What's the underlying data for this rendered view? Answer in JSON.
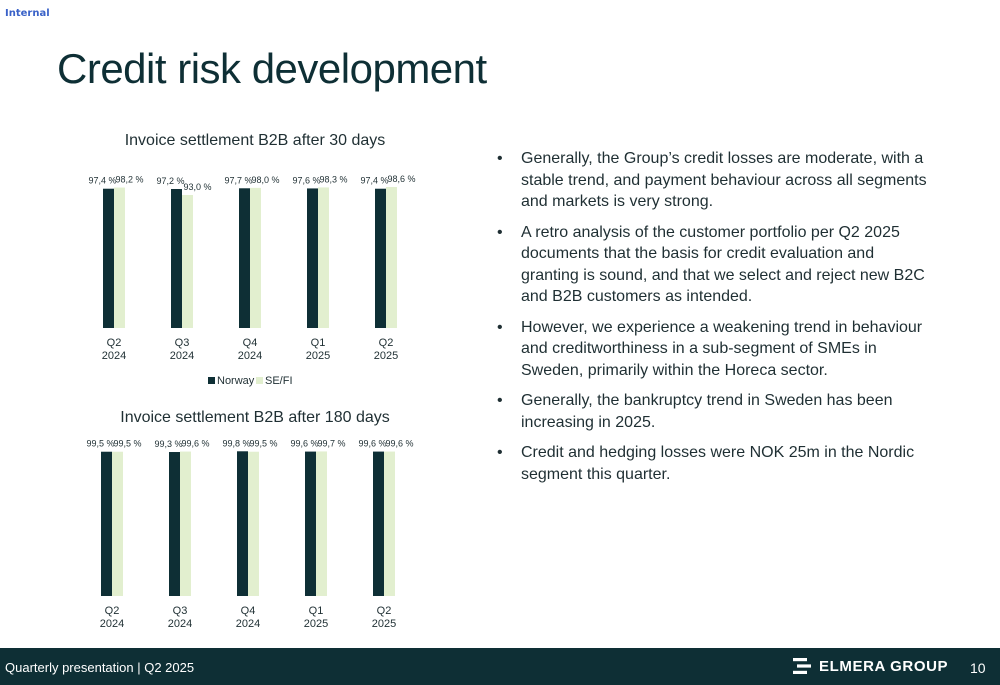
{
  "classification": "Internal",
  "title": "Credit risk development",
  "chart_data": [
    {
      "type": "bar",
      "title": "Invoice settlement B2B after 30 days",
      "categories": [
        "Q2\n2024",
        "Q3\n2024",
        "Q4\n2024",
        "Q1\n2025",
        "Q2\n2025"
      ],
      "series": [
        {
          "name": "Norway",
          "values": [
            97.4,
            97.2,
            97.7,
            97.6,
            97.4
          ],
          "labels": [
            "97,4 %",
            "97,2 %",
            "97,7 %",
            "97,6 %",
            "97,4 %"
          ],
          "color": "#0e2f35"
        },
        {
          "name": "SE/FI",
          "values": [
            98.2,
            93.0,
            98.0,
            98.3,
            98.6
          ],
          "labels": [
            "98,2 %",
            "93,0 %",
            "98,0 %",
            "98,3 %",
            "98,6 %"
          ],
          "color": "#e2efcf"
        }
      ],
      "legend": "bottom",
      "grid": false
    },
    {
      "type": "bar",
      "title": "Invoice settlement B2B after 180 days",
      "categories": [
        "Q2\n2024",
        "Q3\n2024",
        "Q4\n2024",
        "Q1\n2025",
        "Q2\n2025"
      ],
      "series": [
        {
          "name": "Norway",
          "values": [
            99.5,
            99.3,
            99.8,
            99.6,
            99.6
          ],
          "labels": [
            "99,5 %",
            "99,3 %",
            "99,8 %",
            "99,6 %",
            "99,6 %"
          ],
          "color": "#0e2f35"
        },
        {
          "name": "SE/FI",
          "values": [
            99.5,
            99.6,
            99.5,
            99.7,
            99.6
          ],
          "labels": [
            "99,5 %",
            "99,6 %",
            "99,5 %",
            "99,7 %",
            "99,6 %"
          ],
          "color": "#e2efcf"
        }
      ],
      "legend": "none",
      "grid": false
    }
  ],
  "bullets": [
    "Generally, the Group’s credit losses are moderate, with a stable trend, and payment behaviour across all segments and markets is very strong.",
    "A retro analysis of the customer portfolio per Q2 2025 documents that the basis for credit evaluation and granting is sound, and that we select and reject new B2C and B2B customers as intended.",
    "However, we experience a weakening trend in behaviour and creditworthiness in a sub-segment of SMEs in Sweden, primarily within the Horeca sector.",
    "Generally, the bankruptcy trend in Sweden has been increasing in 2025.",
    "Credit and hedging losses were NOK 25m in the Nordic segment this quarter."
  ],
  "footer": {
    "presentation": "Quarterly presentation | Q2 2025",
    "logo": "ELMERA GROUP",
    "page": "10"
  }
}
